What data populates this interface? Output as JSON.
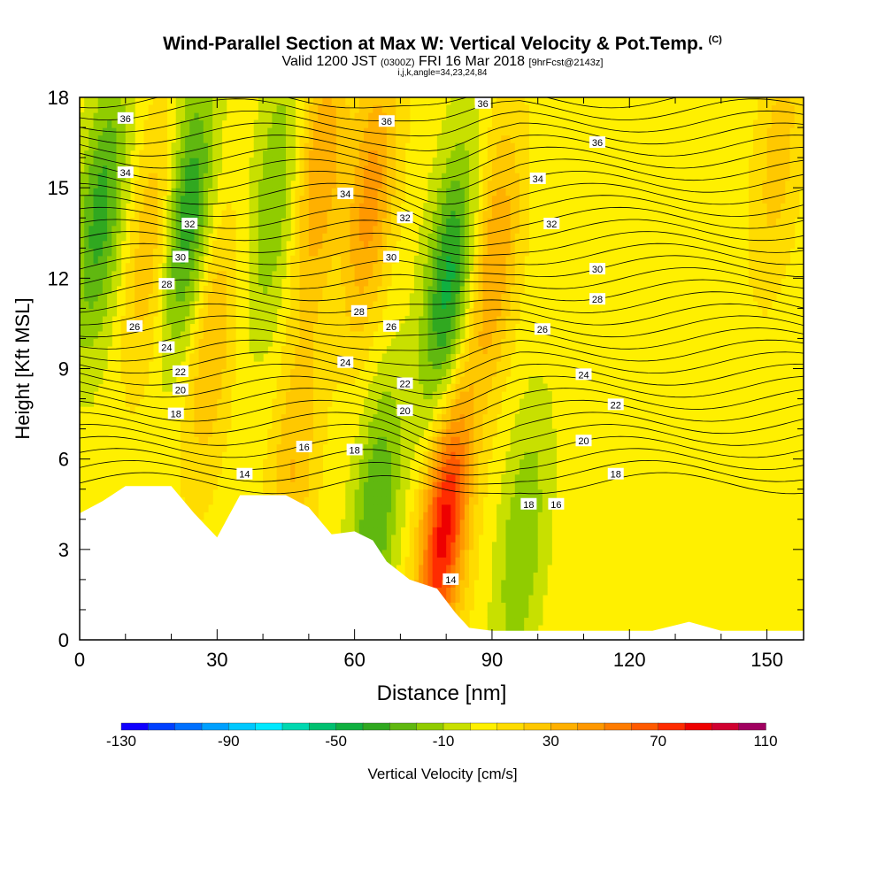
{
  "title": {
    "main": "Wind-Parallel Section at Max W: Vertical Velocity & Pot.Temp.",
    "copyright": "(C)",
    "valid_pre": "Valid 1200 JST",
    "valid_utc": "(0300Z)",
    "valid_date": "FRI 16 Mar 2018",
    "forecast": "[9hrFcst@2143z]",
    "params": "i,j,k,angle=34,23,24,84"
  },
  "chart_data": {
    "type": "heatmap",
    "xlabel": "Distance [nm]",
    "ylabel": "Height [Kft MSL]",
    "xlim": [
      0,
      158
    ],
    "ylim": [
      0,
      18
    ],
    "x_ticks": [
      0,
      30,
      60,
      90,
      120,
      150
    ],
    "y_ticks": [
      0,
      3,
      6,
      9,
      12,
      15,
      18
    ],
    "colorbar": {
      "label": "Vertical Velocity [cm/s]",
      "min": -130,
      "max": 110,
      "step": 10,
      "tick_labels": [
        -130,
        -90,
        -50,
        -10,
        30,
        70,
        110
      ],
      "colors": [
        "#1000ff",
        "#0040ff",
        "#0070ff",
        "#00a0ff",
        "#00c8ff",
        "#00e8ff",
        "#00d8b0",
        "#00c070",
        "#10b040",
        "#30a820",
        "#60b810",
        "#90cc00",
        "#c8e000",
        "#fff000",
        "#ffdc00",
        "#ffc800",
        "#ffb000",
        "#ff9800",
        "#ff7c00",
        "#ff5a00",
        "#ff2c00",
        "#ee0000",
        "#d00030",
        "#a00060",
        "#6a00a0"
      ]
    },
    "terrain_kft": [
      [
        0,
        4.2
      ],
      [
        5,
        4.6
      ],
      [
        10,
        5.1
      ],
      [
        20,
        5.1
      ],
      [
        25,
        4.2
      ],
      [
        30,
        3.4
      ],
      [
        35,
        4.8
      ],
      [
        45,
        4.8
      ],
      [
        50,
        4.4
      ],
      [
        55,
        3.5
      ],
      [
        60,
        3.6
      ],
      [
        64,
        3.3
      ],
      [
        67,
        2.6
      ],
      [
        72,
        2.0
      ],
      [
        78,
        1.7
      ],
      [
        82,
        0.9
      ],
      [
        85,
        0.4
      ],
      [
        90,
        0.3
      ],
      [
        125,
        0.3
      ],
      [
        133,
        0.6
      ],
      [
        140,
        0.3
      ],
      [
        158,
        0.3
      ]
    ],
    "updrafts": [
      {
        "x": 79,
        "z": 3.6,
        "w": 80
      },
      {
        "x": 63,
        "z": 14.5,
        "w": 40
      },
      {
        "x": 52,
        "z": 15.5,
        "w": 35
      },
      {
        "x": 90,
        "z": 12.5,
        "w": 35
      },
      {
        "x": 15,
        "z": 13.0,
        "w": 25
      },
      {
        "x": 28,
        "z": 9.5,
        "w": 25
      },
      {
        "x": 46,
        "z": 5.5,
        "w": 25
      },
      {
        "x": 152,
        "z": 16.0,
        "w": 20
      }
    ],
    "downdrafts": [
      {
        "x": 23,
        "z": 14.0,
        "w": -45
      },
      {
        "x": 4,
        "z": 14.0,
        "w": -40
      },
      {
        "x": 80,
        "z": 11.5,
        "w": -50
      },
      {
        "x": 64,
        "z": 4.0,
        "w": -35
      },
      {
        "x": 96,
        "z": 3.0,
        "w": -25
      },
      {
        "x": 42,
        "z": 14.5,
        "w": -25
      }
    ],
    "theta_labels": [
      {
        "text": "36",
        "x": 10,
        "z": 17.3
      },
      {
        "text": "36",
        "x": 67,
        "z": 17.2
      },
      {
        "text": "36",
        "x": 88,
        "z": 17.8
      },
      {
        "text": "36",
        "x": 113,
        "z": 16.5
      },
      {
        "text": "34",
        "x": 10,
        "z": 15.5
      },
      {
        "text": "34",
        "x": 58,
        "z": 14.8
      },
      {
        "text": "34",
        "x": 100,
        "z": 15.3
      },
      {
        "text": "32",
        "x": 24,
        "z": 13.8
      },
      {
        "text": "32",
        "x": 71,
        "z": 14.0
      },
      {
        "text": "32",
        "x": 103,
        "z": 13.8
      },
      {
        "text": "30",
        "x": 22,
        "z": 12.7
      },
      {
        "text": "30",
        "x": 68,
        "z": 12.7
      },
      {
        "text": "30",
        "x": 113,
        "z": 12.3
      },
      {
        "text": "28",
        "x": 19,
        "z": 11.8
      },
      {
        "text": "28",
        "x": 61,
        "z": 10.9
      },
      {
        "text": "28",
        "x": 113,
        "z": 11.3
      },
      {
        "text": "26",
        "x": 12,
        "z": 10.4
      },
      {
        "text": "26",
        "x": 68,
        "z": 10.4
      },
      {
        "text": "26",
        "x": 101,
        "z": 10.3
      },
      {
        "text": "24",
        "x": 19,
        "z": 9.7
      },
      {
        "text": "24",
        "x": 58,
        "z": 9.2
      },
      {
        "text": "24",
        "x": 110,
        "z": 8.8
      },
      {
        "text": "22",
        "x": 22,
        "z": 8.9
      },
      {
        "text": "22",
        "x": 71,
        "z": 8.5
      },
      {
        "text": "22",
        "x": 117,
        "z": 7.8
      },
      {
        "text": "20",
        "x": 22,
        "z": 8.3
      },
      {
        "text": "20",
        "x": 71,
        "z": 7.6
      },
      {
        "text": "20",
        "x": 110,
        "z": 6.6
      },
      {
        "text": "18",
        "x": 21,
        "z": 7.5
      },
      {
        "text": "18",
        "x": 60,
        "z": 6.3
      },
      {
        "text": "18",
        "x": 98,
        "z": 4.5
      },
      {
        "text": "18",
        "x": 117,
        "z": 5.5
      },
      {
        "text": "16",
        "x": 49,
        "z": 6.4
      },
      {
        "text": "16",
        "x": 104,
        "z": 4.5
      },
      {
        "text": "14",
        "x": 36,
        "z": 5.5
      },
      {
        "text": "14",
        "x": 81,
        "z": 2.0
      }
    ]
  }
}
